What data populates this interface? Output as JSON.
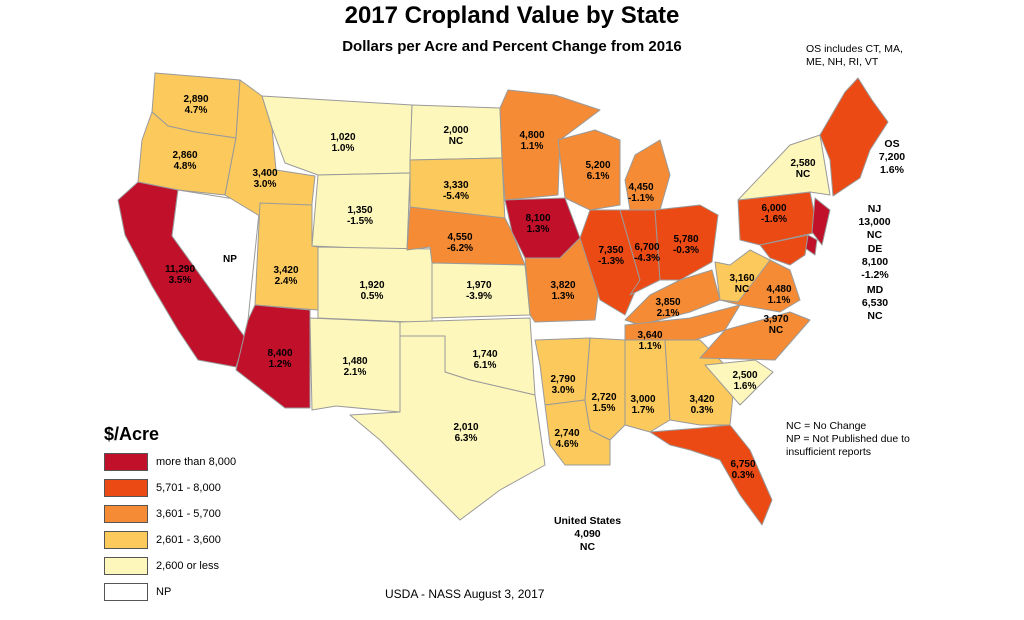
{
  "title": "2017 Cropland Value by State",
  "subtitle": "Dollars per Acre and Percent Change from 2016",
  "colors": {
    "more_than_8000": "#c0102a",
    "5701_8000": "#ec4a14",
    "3601_5700": "#f58c35",
    "2601_3600": "#fbc95c",
    "2600_or_less": "#fdf7bb",
    "np": "#ffffff",
    "border": "#9a9a9a"
  },
  "legend": {
    "title": "$/Acre",
    "items": [
      {
        "label": "more than 8,000",
        "color": "#c0102a"
      },
      {
        "label": "5,701 - 8,000",
        "color": "#ec4a14"
      },
      {
        "label": "3,601 - 5,700",
        "color": "#f58c35"
      },
      {
        "label": "2,601 - 3,600",
        "color": "#fbc95c"
      },
      {
        "label": "2,600 or less",
        "color": "#fdf7bb"
      },
      {
        "label": "NP",
        "color": "#ffffff"
      }
    ]
  },
  "states": [
    {
      "state": "WA",
      "value": "2,890",
      "change": "4.7%",
      "class": "2601_3600"
    },
    {
      "state": "OR",
      "value": "2,860",
      "change": "4.8%",
      "class": "2601_3600"
    },
    {
      "state": "CA",
      "value": "11,290",
      "change": "3.5%",
      "class": "more_than_8000"
    },
    {
      "state": "NV",
      "value": "NP",
      "change": "",
      "class": "np"
    },
    {
      "state": "ID",
      "value": "3,400",
      "change": "3.0%",
      "class": "2601_3600"
    },
    {
      "state": "MT",
      "value": "1,020",
      "change": "1.0%",
      "class": "2600_or_less"
    },
    {
      "state": "WY",
      "value": "1,350",
      "change": "-1.5%",
      "class": "2600_or_less"
    },
    {
      "state": "UT",
      "value": "3,420",
      "change": "2.4%",
      "class": "2601_3600"
    },
    {
      "state": "CO",
      "value": "1,920",
      "change": "0.5%",
      "class": "2600_or_less"
    },
    {
      "state": "AZ",
      "value": "8,400",
      "change": "1.2%",
      "class": "more_than_8000"
    },
    {
      "state": "NM",
      "value": "1,480",
      "change": "2.1%",
      "class": "2600_or_less"
    },
    {
      "state": "ND",
      "value": "2,000",
      "change": "NC",
      "class": "2600_or_less"
    },
    {
      "state": "SD",
      "value": "3,330",
      "change": "-5.4%",
      "class": "2601_3600"
    },
    {
      "state": "NE",
      "value": "4,550",
      "change": "-6.2%",
      "class": "3601_5700"
    },
    {
      "state": "KS",
      "value": "1,970",
      "change": "-3.9%",
      "class": "2600_or_less"
    },
    {
      "state": "OK",
      "value": "1,740",
      "change": "6.1%",
      "class": "2600_or_less"
    },
    {
      "state": "TX",
      "value": "2,010",
      "change": "6.3%",
      "class": "2600_or_less"
    },
    {
      "state": "MN",
      "value": "4,800",
      "change": "1.1%",
      "class": "3601_5700"
    },
    {
      "state": "IA",
      "value": "8,100",
      "change": "1.3%",
      "class": "more_than_8000"
    },
    {
      "state": "MO",
      "value": "3,820",
      "change": "1.3%",
      "class": "3601_5700"
    },
    {
      "state": "AR",
      "value": "2,790",
      "change": "3.0%",
      "class": "2601_3600"
    },
    {
      "state": "LA",
      "value": "2,740",
      "change": "4.6%",
      "class": "2601_3600"
    },
    {
      "state": "WI",
      "value": "5,200",
      "change": "6.1%",
      "class": "3601_5700"
    },
    {
      "state": "IL",
      "value": "7,350",
      "change": "-1.3%",
      "class": "5701_8000"
    },
    {
      "state": "MI",
      "value": "4,450",
      "change": "-1.1%",
      "class": "3601_5700"
    },
    {
      "state": "IN",
      "value": "6,700",
      "change": "-4.3%",
      "class": "5701_8000"
    },
    {
      "state": "OH",
      "value": "5,780",
      "change": "-0.3%",
      "class": "5701_8000"
    },
    {
      "state": "KY",
      "value": "3,850",
      "change": "2.1%",
      "class": "3601_5700"
    },
    {
      "state": "TN",
      "value": "3,640",
      "change": "1.1%",
      "class": "3601_5700"
    },
    {
      "state": "MS",
      "value": "2,720",
      "change": "1.5%",
      "class": "2601_3600"
    },
    {
      "state": "AL",
      "value": "3,000",
      "change": "1.7%",
      "class": "2601_3600"
    },
    {
      "state": "GA",
      "value": "3,420",
      "change": "0.3%",
      "class": "2601_3600"
    },
    {
      "state": "FL",
      "value": "6,750",
      "change": "0.3%",
      "class": "5701_8000"
    },
    {
      "state": "SC",
      "value": "2,500",
      "change": "1.6%",
      "class": "2600_or_less"
    },
    {
      "state": "NC",
      "value": "3,970",
      "change": "NC",
      "class": "3601_5700"
    },
    {
      "state": "VA",
      "value": "4,480",
      "change": "1.1%",
      "class": "3601_5700"
    },
    {
      "state": "WV",
      "value": "3,160",
      "change": "NC",
      "class": "2601_3600"
    },
    {
      "state": "PA",
      "value": "6,000",
      "change": "-1.6%",
      "class": "5701_8000"
    },
    {
      "state": "NY",
      "value": "2,580",
      "change": "NC",
      "class": "2600_or_less"
    },
    {
      "state": "NJ",
      "value": "13,000",
      "change": "NC",
      "class": "more_than_8000"
    },
    {
      "state": "DE",
      "value": "8,100",
      "change": "-1.2%",
      "class": "more_than_8000"
    },
    {
      "state": "MD",
      "value": "6,530",
      "change": "NC",
      "class": "5701_8000"
    },
    {
      "state": "OS",
      "value": "7,200",
      "change": "1.6%",
      "class": "5701_8000"
    }
  ],
  "notes": {
    "os_note": "OS includes CT, MA, ME, NH, RI, VT",
    "os": {
      "name": "OS",
      "value": "7,200",
      "change": "1.6%"
    },
    "nj": {
      "name": "NJ",
      "value": "13,000",
      "change": "NC"
    },
    "de": {
      "name": "DE",
      "value": "8,100",
      "change": "-1.2%"
    },
    "md": {
      "name": "MD",
      "value": "6,530",
      "change": "NC"
    },
    "nc_def": "NC = No Change",
    "np_def": "NP = Not Published due to insufficient reports",
    "us": {
      "name": "United States",
      "value": "4,090",
      "change": "NC"
    }
  },
  "source": "USDA - NASS August 3, 2017"
}
